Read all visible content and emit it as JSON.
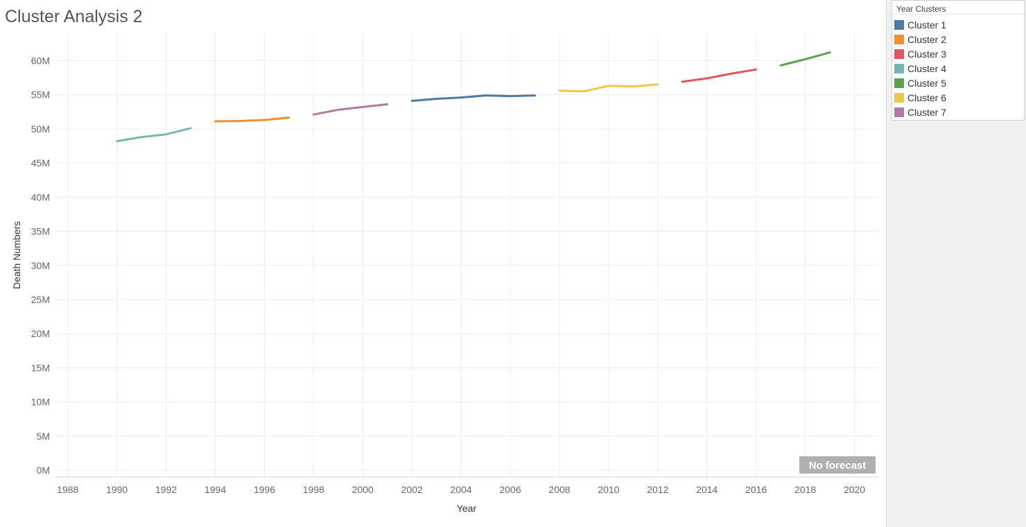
{
  "chart_data": {
    "type": "line",
    "title": "Cluster Analysis 2",
    "xlabel": "Year",
    "ylabel": "Death Numbers",
    "xlim": [
      1987.5,
      2021
    ],
    "ylim": [
      -1000000,
      64000000
    ],
    "x_ticks": [
      "1988",
      "1990",
      "1992",
      "1994",
      "1996",
      "1998",
      "2000",
      "2002",
      "2004",
      "2006",
      "2008",
      "2010",
      "2012",
      "2014",
      "2016",
      "2018",
      "2020"
    ],
    "y_ticks": [
      "0M",
      "5M",
      "10M",
      "15M",
      "20M",
      "25M",
      "30M",
      "35M",
      "40M",
      "45M",
      "50M",
      "55M",
      "60M"
    ],
    "grid": true,
    "legend_title": "Year Clusters",
    "legend_position": "right",
    "annotation": "No forecast",
    "series": [
      {
        "name": "Cluster 1",
        "color": "#4e79a7",
        "points": [
          [
            2002,
            54100000
          ],
          [
            2003,
            54400000
          ],
          [
            2004,
            54600000
          ],
          [
            2005,
            54900000
          ],
          [
            2006,
            54800000
          ],
          [
            2007,
            54900000
          ]
        ]
      },
      {
        "name": "Cluster 2",
        "color": "#f28e2b",
        "points": [
          [
            1994,
            51100000
          ],
          [
            1995,
            51150000
          ],
          [
            1996,
            51300000
          ],
          [
            1997,
            51650000
          ]
        ]
      },
      {
        "name": "Cluster 3",
        "color": "#e15759",
        "points": [
          [
            2013,
            56900000
          ],
          [
            2014,
            57400000
          ],
          [
            2015,
            58100000
          ],
          [
            2016,
            58700000
          ]
        ]
      },
      {
        "name": "Cluster 4",
        "color": "#76b7b2",
        "points": [
          [
            1990,
            48200000
          ],
          [
            1991,
            48800000
          ],
          [
            1992,
            49200000
          ],
          [
            1993,
            50100000
          ]
        ]
      },
      {
        "name": "Cluster 5",
        "color": "#59a14f",
        "points": [
          [
            2017,
            59300000
          ],
          [
            2018,
            60200000
          ],
          [
            2019,
            61200000
          ]
        ]
      },
      {
        "name": "Cluster 6",
        "color": "#edc948",
        "points": [
          [
            2008,
            55600000
          ],
          [
            2009,
            55500000
          ],
          [
            2010,
            56300000
          ],
          [
            2011,
            56200000
          ],
          [
            2012,
            56500000
          ]
        ]
      },
      {
        "name": "Cluster 7",
        "color": "#b07aa1",
        "points": [
          [
            1998,
            52100000
          ],
          [
            1999,
            52800000
          ],
          [
            2000,
            53200000
          ],
          [
            2001,
            53600000
          ]
        ]
      }
    ]
  }
}
